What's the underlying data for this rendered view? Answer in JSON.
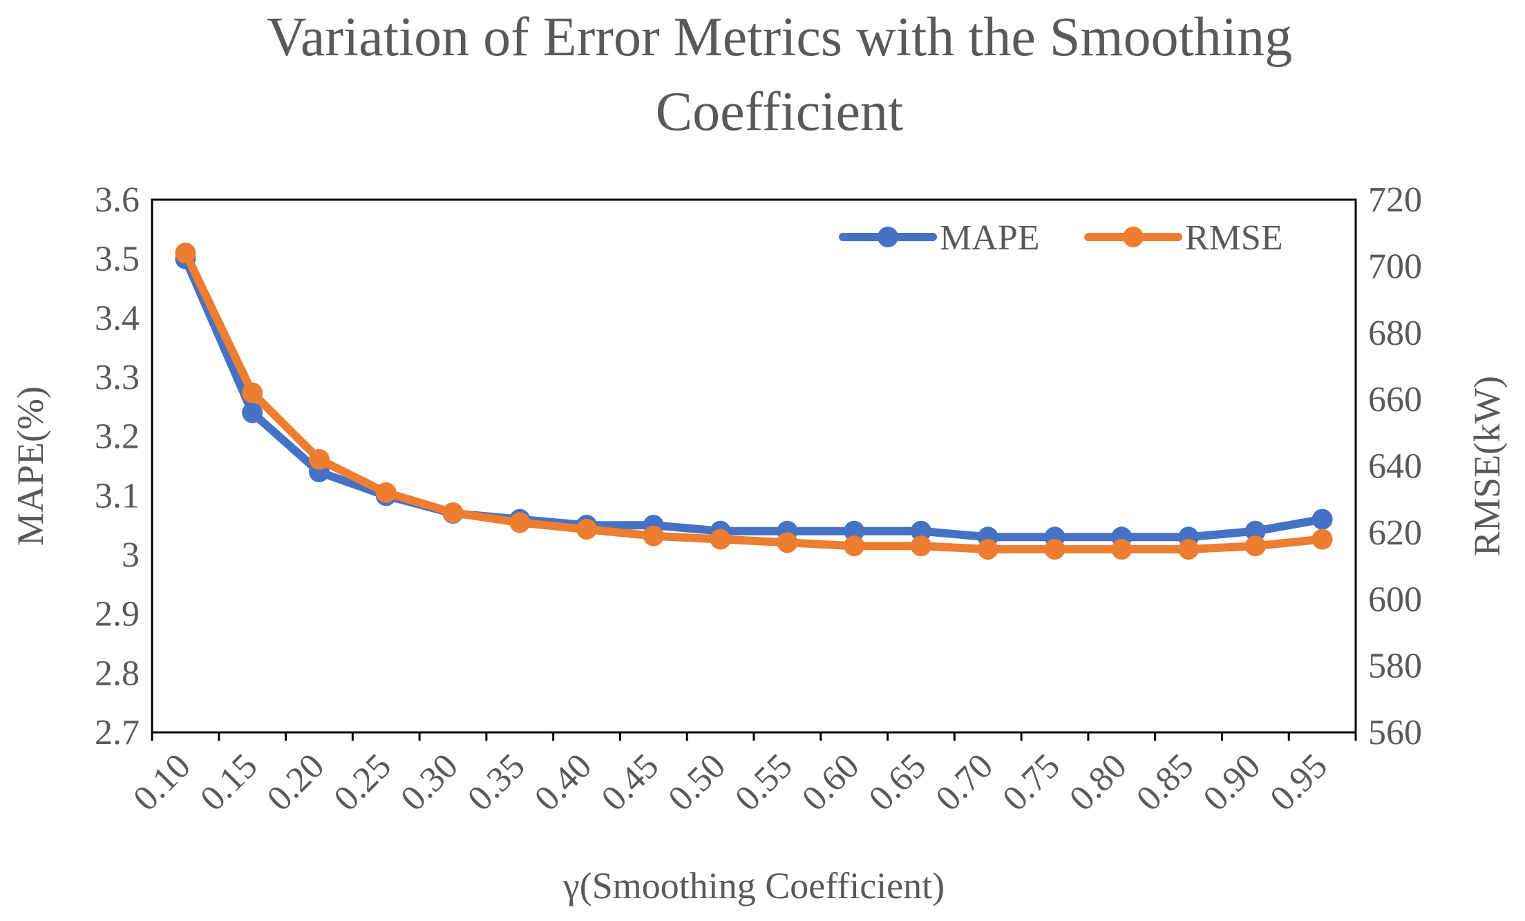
{
  "chart_data": {
    "type": "line",
    "title": [
      "Variation of Error Metrics with the Smoothing",
      "Coefficient"
    ],
    "xlabel": "γ(Smoothing Coefficient)",
    "ylabel_left": "MAPE(%)",
    "ylabel_right": "RMSE(kW)",
    "categories": [
      "0.10",
      "0.15",
      "0.20",
      "0.25",
      "0.30",
      "0.35",
      "0.40",
      "0.45",
      "0.50",
      "0.55",
      "0.60",
      "0.65",
      "0.70",
      "0.75",
      "0.80",
      "0.85",
      "0.90",
      "0.95"
    ],
    "y_left": {
      "min": 2.7,
      "max": 3.6,
      "ticks": [
        "3.6",
        "3.5",
        "3.4",
        "3.3",
        "3.2",
        "3.1",
        "3",
        "2.9",
        "2.8",
        "2.7"
      ]
    },
    "y_right": {
      "min": 560,
      "max": 720,
      "ticks": [
        "720",
        "700",
        "680",
        "660",
        "640",
        "620",
        "600",
        "580",
        "560"
      ]
    },
    "grid": false,
    "legend_position": "top-right",
    "series": [
      {
        "name": "MAPE",
        "axis": "left",
        "color": "#4472C4",
        "values": [
          3.5,
          3.24,
          3.14,
          3.1,
          3.07,
          3.06,
          3.05,
          3.05,
          3.04,
          3.04,
          3.04,
          3.04,
          3.03,
          3.03,
          3.03,
          3.03,
          3.04,
          3.06
        ]
      },
      {
        "name": "RMSE",
        "axis": "right",
        "color": "#ED7D31",
        "values": [
          704,
          662,
          642,
          632,
          626,
          623,
          621,
          619,
          618,
          617,
          616,
          616,
          615,
          615,
          615,
          615,
          616,
          618
        ]
      }
    ]
  }
}
